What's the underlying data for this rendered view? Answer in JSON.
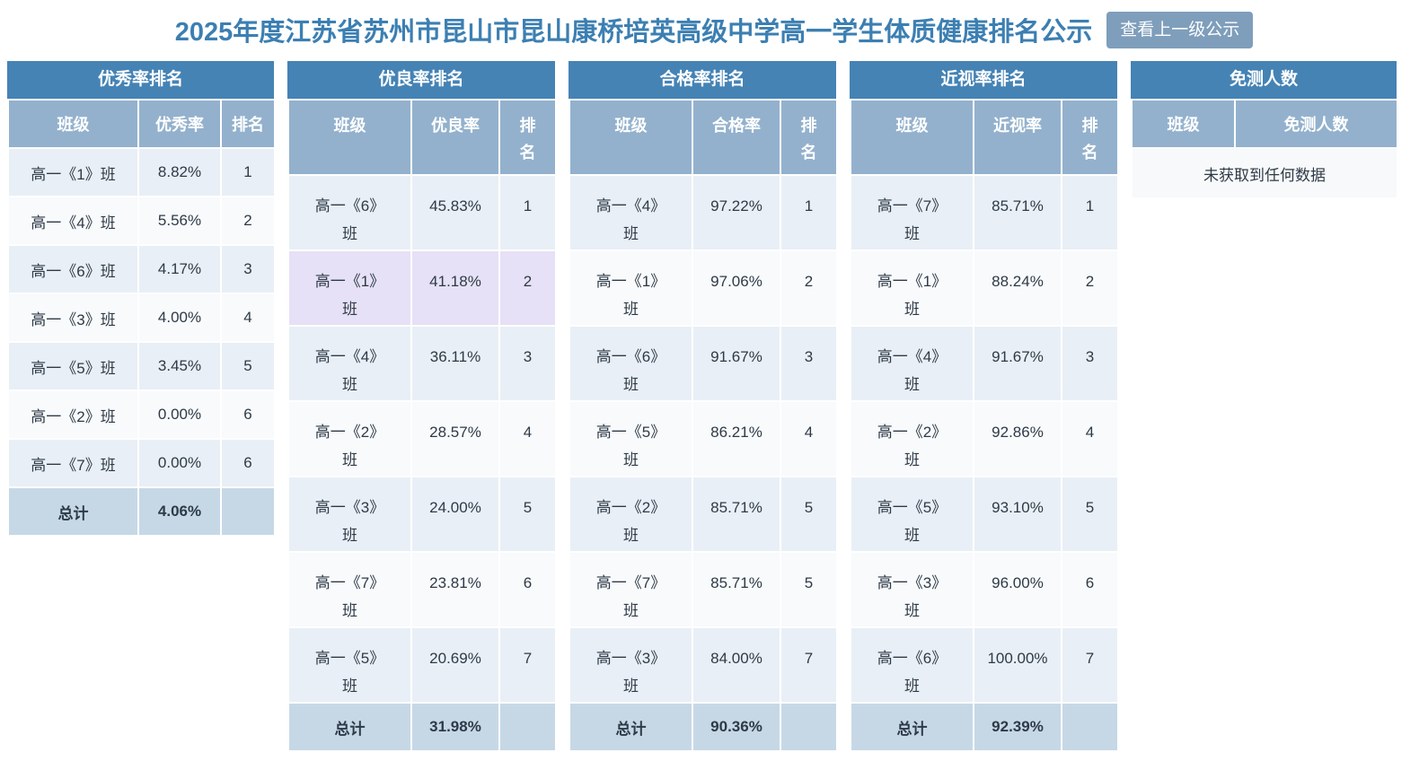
{
  "page": {
    "title": "2025年度江苏省苏州市昆山市昆山康桥培英高级中学高一学生体质健康排名公示",
    "back_button_label": "查看上一级公示"
  },
  "colors": {
    "title_text": "#3C7FB2",
    "button_bg": "#7E9EBB",
    "table_title_bg": "#4583B5",
    "column_header_bg": "#93B1CD",
    "row_odd_bg": "#E9EFF6",
    "row_even_bg": "#F8FAFC",
    "total_row_bg": "#C6D8E6",
    "highlight_row_bg": "#E6E1F6"
  },
  "tables": [
    {
      "title": "优秀率排名",
      "columns": [
        "班级",
        "优秀率",
        "排名"
      ],
      "rows": [
        [
          "高一《1》班",
          "8.82%",
          "1"
        ],
        [
          "高一《4》班",
          "5.56%",
          "2"
        ],
        [
          "高一《6》班",
          "4.17%",
          "3"
        ],
        [
          "高一《3》班",
          "4.00%",
          "4"
        ],
        [
          "高一《5》班",
          "3.45%",
          "5"
        ],
        [
          "高一《2》班",
          "0.00%",
          "6"
        ],
        [
          "高一《7》班",
          "0.00%",
          "6"
        ]
      ],
      "total": [
        "总计",
        "4.06%",
        ""
      ]
    },
    {
      "title": "优良率排名",
      "columns": [
        "班级",
        "优良率",
        "排\n名"
      ],
      "highlight_row": 1,
      "rows": [
        [
          "高一《6》\n班",
          "45.83%",
          "1"
        ],
        [
          "高一《1》\n班",
          "41.18%",
          "2"
        ],
        [
          "高一《4》\n班",
          "36.11%",
          "3"
        ],
        [
          "高一《2》\n班",
          "28.57%",
          "4"
        ],
        [
          "高一《3》\n班",
          "24.00%",
          "5"
        ],
        [
          "高一《7》\n班",
          "23.81%",
          "6"
        ],
        [
          "高一《5》\n班",
          "20.69%",
          "7"
        ]
      ],
      "total": [
        "总计",
        "31.98%",
        ""
      ]
    },
    {
      "title": "合格率排名",
      "columns": [
        "班级",
        "合格率",
        "排\n名"
      ],
      "rows": [
        [
          "高一《4》\n班",
          "97.22%",
          "1"
        ],
        [
          "高一《1》\n班",
          "97.06%",
          "2"
        ],
        [
          "高一《6》\n班",
          "91.67%",
          "3"
        ],
        [
          "高一《5》\n班",
          "86.21%",
          "4"
        ],
        [
          "高一《2》\n班",
          "85.71%",
          "5"
        ],
        [
          "高一《7》\n班",
          "85.71%",
          "5"
        ],
        [
          "高一《3》\n班",
          "84.00%",
          "7"
        ]
      ],
      "total": [
        "总计",
        "90.36%",
        ""
      ]
    },
    {
      "title": "近视率排名",
      "columns": [
        "班级",
        "近视率",
        "排\n名"
      ],
      "rows": [
        [
          "高一《7》\n班",
          "85.71%",
          "1"
        ],
        [
          "高一《1》\n班",
          "88.24%",
          "2"
        ],
        [
          "高一《4》\n班",
          "91.67%",
          "3"
        ],
        [
          "高一《2》\n班",
          "92.86%",
          "4"
        ],
        [
          "高一《5》\n班",
          "93.10%",
          "5"
        ],
        [
          "高一《3》\n班",
          "96.00%",
          "6"
        ],
        [
          "高一《6》\n班",
          "100.00%",
          "7"
        ]
      ],
      "total": [
        "总计",
        "92.39%",
        ""
      ]
    },
    {
      "title": "免测人数",
      "columns": [
        "班级",
        "免测人数"
      ],
      "rows": [],
      "empty_text": "未获取到任何数据"
    }
  ]
}
